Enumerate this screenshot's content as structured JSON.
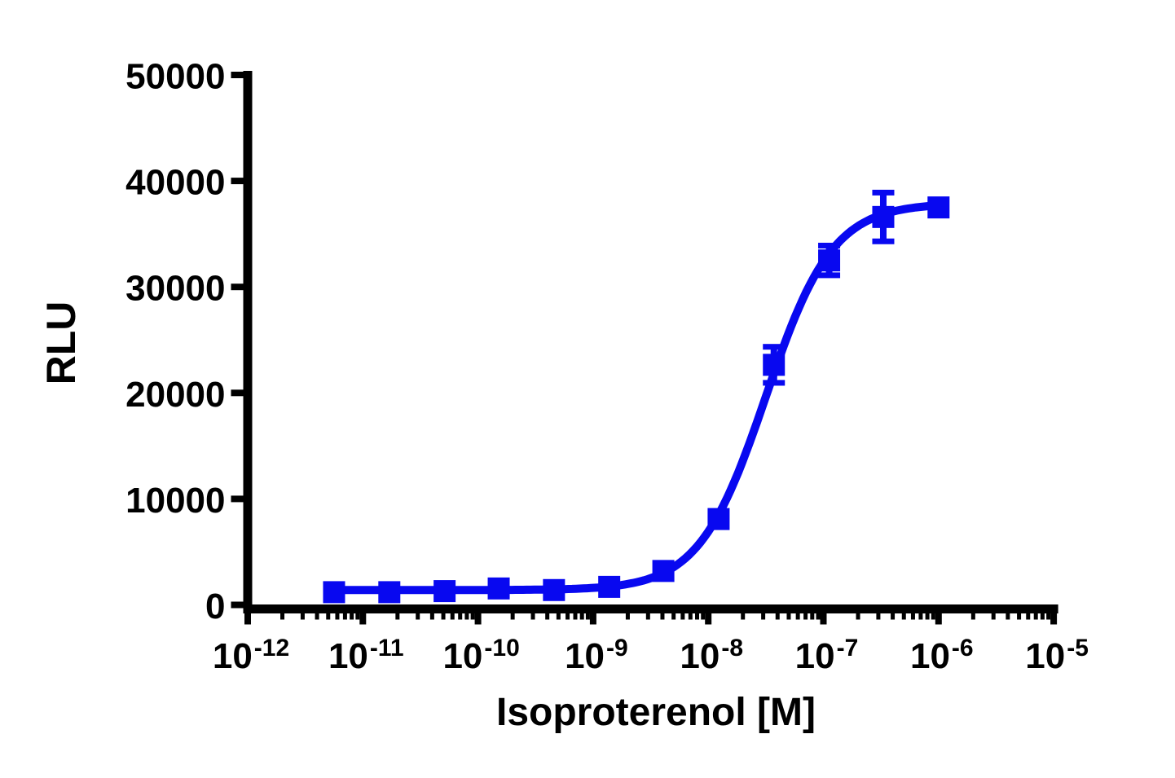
{
  "figure": {
    "background_color": "#ffffff",
    "title": ""
  },
  "chart_data": {
    "type": "scatter",
    "subtype": "sigmoidal-dose-response-curve",
    "title": "",
    "xlabel": "Isoproterenol [M]",
    "ylabel": "RLU",
    "x_scale": "log10",
    "grid": false,
    "legend": false,
    "axis_color": "#000000",
    "x_axis": {
      "min_exponent": -12,
      "max_exponent": -5,
      "major_tick_exponents": [
        -12,
        -11,
        -10,
        -9,
        -8,
        -7,
        -6,
        -5
      ],
      "tick_label_base": "10",
      "minor_tick_mantissas": [
        2,
        3,
        4,
        5,
        6,
        7,
        8,
        9
      ]
    },
    "y_axis": {
      "min": 0,
      "max": 50000,
      "ticks": [
        0,
        10000,
        20000,
        30000,
        40000,
        50000
      ]
    },
    "series": [
      {
        "name": "Isoproterenol",
        "color": "#0808f0",
        "marker": "square",
        "points": [
          {
            "conc_M": 5.6e-12,
            "log10_conc": -11.25,
            "rlu": 1200,
            "error_rlu": 0
          },
          {
            "conc_M": 1.7e-11,
            "log10_conc": -10.77,
            "rlu": 1200,
            "error_rlu": 0
          },
          {
            "conc_M": 5.1e-11,
            "log10_conc": -10.29,
            "rlu": 1300,
            "error_rlu": 0
          },
          {
            "conc_M": 1.5e-10,
            "log10_conc": -9.82,
            "rlu": 1550,
            "error_rlu": 0
          },
          {
            "conc_M": 4.6e-10,
            "log10_conc": -9.34,
            "rlu": 1400,
            "error_rlu": 0
          },
          {
            "conc_M": 1.4e-09,
            "log10_conc": -8.86,
            "rlu": 1700,
            "error_rlu": 0
          },
          {
            "conc_M": 4.1e-09,
            "log10_conc": -8.39,
            "rlu": 3200,
            "error_rlu": 0
          },
          {
            "conc_M": 1.2e-08,
            "log10_conc": -7.91,
            "rlu": 8100,
            "error_rlu": 0
          },
          {
            "conc_M": 3.7e-08,
            "log10_conc": -7.43,
            "rlu": 22650,
            "error_rlu": 1700
          },
          {
            "conc_M": 1.1e-07,
            "log10_conc": -6.95,
            "rlu": 32500,
            "error_rlu": 1400
          },
          {
            "conc_M": 3.3e-07,
            "log10_conc": -6.48,
            "rlu": 36600,
            "error_rlu": 2300
          },
          {
            "conc_M": 1e-06,
            "log10_conc": -6.0,
            "rlu": 37500,
            "error_rlu": 0
          }
        ],
        "fit_curve": {
          "model": "four-parameter-logistic",
          "bottom_rlu": 1400,
          "top_rlu": 37900,
          "log10_ec50": -7.5,
          "hill_slope": 1.5,
          "draw_range_log10": [
            -11.25,
            -6.0
          ]
        }
      }
    ]
  }
}
